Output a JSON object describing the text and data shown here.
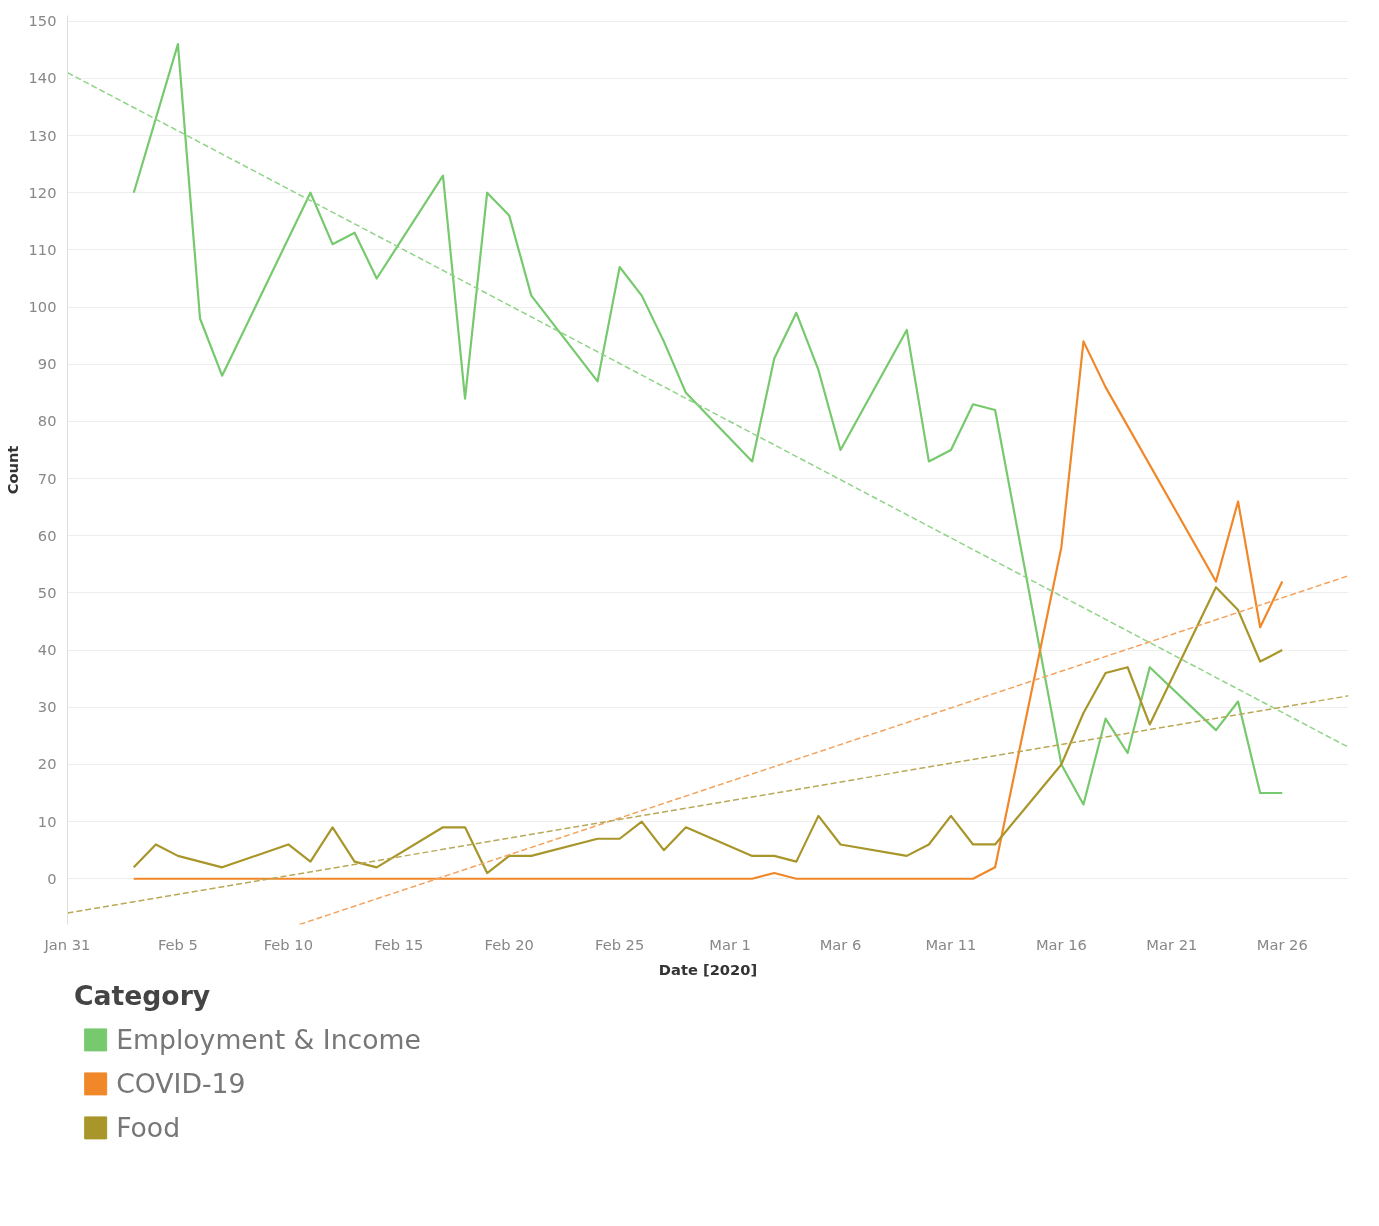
{
  "chart_data": {
    "type": "line",
    "xlabel": "Date [2020]",
    "ylabel": "Count",
    "legend_title": "Category",
    "legend": "bottom",
    "grid": "y",
    "line_style": "solid",
    "xlim": [
      "2020-01-31",
      "2020-03-29"
    ],
    "ylim": [
      -8,
      151
    ],
    "xticks": [
      {
        "value": "2020-01-31",
        "label": "Jan 31"
      },
      {
        "value": "2020-02-05",
        "label": "Feb 5"
      },
      {
        "value": "2020-02-10",
        "label": "Feb 10"
      },
      {
        "value": "2020-02-15",
        "label": "Feb 15"
      },
      {
        "value": "2020-02-20",
        "label": "Feb 20"
      },
      {
        "value": "2020-02-25",
        "label": "Feb 25"
      },
      {
        "value": "2020-03-01",
        "label": "Mar 1"
      },
      {
        "value": "2020-03-06",
        "label": "Mar 6"
      },
      {
        "value": "2020-03-11",
        "label": "Mar 11"
      },
      {
        "value": "2020-03-16",
        "label": "Mar 16"
      },
      {
        "value": "2020-03-21",
        "label": "Mar 21"
      },
      {
        "value": "2020-03-26",
        "label": "Mar 26"
      }
    ],
    "yticks": [
      0,
      10,
      20,
      30,
      40,
      50,
      60,
      70,
      80,
      90,
      100,
      110,
      120,
      130,
      140,
      150
    ],
    "series": [
      {
        "name": "Employment & Income",
        "color": "#77c96e",
        "x": [
          "2020-02-03",
          "2020-02-05",
          "2020-02-06",
          "2020-02-07",
          "2020-02-11",
          "2020-02-12",
          "2020-02-13",
          "2020-02-14",
          "2020-02-17",
          "2020-02-18",
          "2020-02-19",
          "2020-02-20",
          "2020-02-21",
          "2020-02-24",
          "2020-02-25",
          "2020-02-26",
          "2020-02-27",
          "2020-02-28",
          "2020-03-02",
          "2020-03-03",
          "2020-03-04",
          "2020-03-05",
          "2020-03-06",
          "2020-03-09",
          "2020-03-10",
          "2020-03-11",
          "2020-03-12",
          "2020-03-13",
          "2020-03-16",
          "2020-03-17",
          "2020-03-18",
          "2020-03-19",
          "2020-03-20",
          "2020-03-23",
          "2020-03-24",
          "2020-03-25",
          "2020-03-26"
        ],
        "values": [
          120,
          146,
          98,
          88,
          120,
          111,
          113,
          105,
          123,
          84,
          120,
          116,
          102,
          87,
          107,
          102,
          94,
          85,
          73,
          91,
          99,
          89,
          75,
          96,
          73,
          75,
          83,
          82,
          20,
          13,
          28,
          22,
          37,
          26,
          31,
          15,
          15
        ]
      },
      {
        "name": "COVID-19",
        "color": "#f0882a",
        "x": [
          "2020-02-03",
          "2020-02-10",
          "2020-02-17",
          "2020-02-24",
          "2020-03-02",
          "2020-03-03",
          "2020-03-04",
          "2020-03-12",
          "2020-03-13",
          "2020-03-16",
          "2020-03-17",
          "2020-03-18",
          "2020-03-23",
          "2020-03-24",
          "2020-03-25",
          "2020-03-26"
        ],
        "values": [
          0,
          0,
          0,
          0,
          0,
          1,
          0,
          0,
          2,
          58,
          94,
          86,
          52,
          66,
          44,
          52
        ]
      },
      {
        "name": "Food",
        "color": "#a8962a",
        "x": [
          "2020-02-03",
          "2020-02-04",
          "2020-02-05",
          "2020-02-07",
          "2020-02-10",
          "2020-02-11",
          "2020-02-12",
          "2020-02-13",
          "2020-02-14",
          "2020-02-17",
          "2020-02-18",
          "2020-02-19",
          "2020-02-20",
          "2020-02-21",
          "2020-02-24",
          "2020-02-25",
          "2020-02-26",
          "2020-02-27",
          "2020-02-28",
          "2020-03-02",
          "2020-03-03",
          "2020-03-04",
          "2020-03-05",
          "2020-03-06",
          "2020-03-09",
          "2020-03-10",
          "2020-03-11",
          "2020-03-12",
          "2020-03-13",
          "2020-03-16",
          "2020-03-17",
          "2020-03-18",
          "2020-03-19",
          "2020-03-20",
          "2020-03-23",
          "2020-03-24",
          "2020-03-25",
          "2020-03-26"
        ],
        "values": [
          2,
          6,
          4,
          2,
          6,
          3,
          9,
          3,
          2,
          9,
          9,
          1,
          4,
          4,
          7,
          7,
          10,
          5,
          9,
          4,
          4,
          3,
          11,
          6,
          4,
          6,
          11,
          6,
          6,
          20,
          29,
          36,
          37,
          27,
          51,
          47,
          38,
          40
        ]
      },
      {
        "color": "#8fd487",
        "line_style": "dashed",
        "x": [
          "2020-01-31",
          "2020-03-29"
        ],
        "values": [
          141,
          23
        ]
      },
      {
        "color": "#f3a35e",
        "line_style": "dashed",
        "x": [
          "2020-02-10T12:00",
          "2020-03-29"
        ],
        "values": [
          -8,
          53
        ]
      },
      {
        "color": "#b9a955",
        "line_style": "dashed",
        "x": [
          "2020-01-31",
          "2020-03-29"
        ],
        "values": [
          -6,
          32
        ]
      }
    ]
  }
}
